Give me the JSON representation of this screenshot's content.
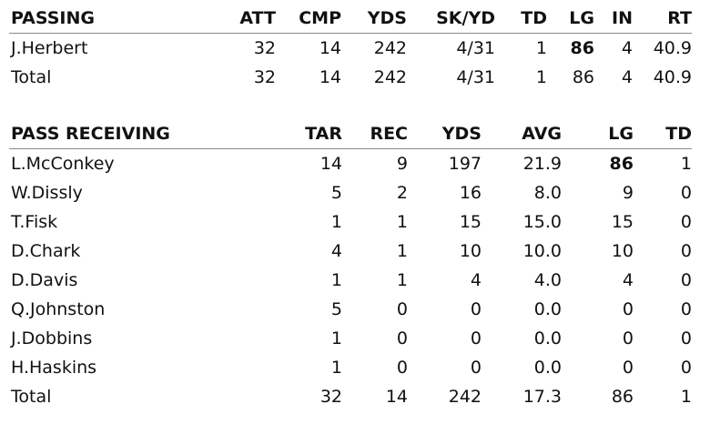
{
  "passing": {
    "headers": [
      "PASSING",
      "ATT",
      "CMP",
      "YDS",
      "SK/YD",
      "TD",
      "LG",
      "IN",
      "RT"
    ],
    "rows": [
      {
        "name": "J.Herbert",
        "att": "32",
        "cmp": "14",
        "yds": "242",
        "skyd": "4/31",
        "td": "1",
        "lg": "86",
        "int": "4",
        "rt": "40.9"
      },
      {
        "name": "Total",
        "att": "32",
        "cmp": "14",
        "yds": "242",
        "skyd": "4/31",
        "td": "1",
        "lg": "86",
        "int": "4",
        "rt": "40.9"
      }
    ]
  },
  "receiving": {
    "headers": [
      "PASS RECEIVING",
      "TAR",
      "REC",
      "YDS",
      "AVG",
      "LG",
      "TD"
    ],
    "rows": [
      {
        "name": "L.McConkey",
        "tar": "14",
        "rec": "9",
        "yds": "197",
        "avg": "21.9",
        "lg": "86",
        "td": "1"
      },
      {
        "name": "W.Dissly",
        "tar": "5",
        "rec": "2",
        "yds": "16",
        "avg": "8.0",
        "lg": "9",
        "td": "0"
      },
      {
        "name": "T.Fisk",
        "tar": "1",
        "rec": "1",
        "yds": "15",
        "avg": "15.0",
        "lg": "15",
        "td": "0"
      },
      {
        "name": "D.Chark",
        "tar": "4",
        "rec": "1",
        "yds": "10",
        "avg": "10.0",
        "lg": "10",
        "td": "0"
      },
      {
        "name": "D.Davis",
        "tar": "1",
        "rec": "1",
        "yds": "4",
        "avg": "4.0",
        "lg": "4",
        "td": "0"
      },
      {
        "name": "Q.Johnston",
        "tar": "5",
        "rec": "0",
        "yds": "0",
        "avg": "0.0",
        "lg": "0",
        "td": "0"
      },
      {
        "name": "J.Dobbins",
        "tar": "1",
        "rec": "0",
        "yds": "0",
        "avg": "0.0",
        "lg": "0",
        "td": "0"
      },
      {
        "name": "H.Haskins",
        "tar": "1",
        "rec": "0",
        "yds": "0",
        "avg": "0.0",
        "lg": "0",
        "td": "0"
      },
      {
        "name": "Total",
        "tar": "32",
        "rec": "14",
        "yds": "242",
        "avg": "17.3",
        "lg": "86",
        "td": "1"
      }
    ]
  }
}
